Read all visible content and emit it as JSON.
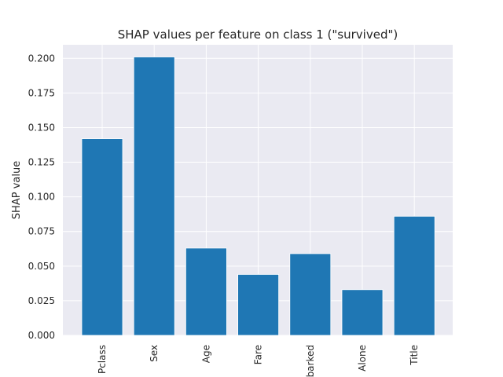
{
  "chart_data": {
    "type": "bar",
    "title": "SHAP values per feature on class 1 (\"survived\")",
    "xlabel": "",
    "ylabel": "SHAP value",
    "categories": [
      "Pclass",
      "Sex",
      "Age",
      "Fare",
      "Embarked",
      "Alone",
      "Title"
    ],
    "values": [
      0.142,
      0.201,
      0.063,
      0.044,
      0.059,
      0.033,
      0.086
    ],
    "ylim": [
      0,
      0.2
    ],
    "yticks": [
      0.0,
      0.025,
      0.05,
      0.075,
      0.1,
      0.125,
      0.15,
      0.175,
      0.2
    ],
    "ytick_labels": [
      "0.000",
      "0.025",
      "0.050",
      "0.075",
      "0.100",
      "0.125",
      "0.150",
      "0.175",
      "0.200"
    ],
    "grid": true,
    "colors": {
      "bar": "#1f77b4",
      "plot_background": "#eaeaf2",
      "grid": "#ffffff"
    }
  }
}
